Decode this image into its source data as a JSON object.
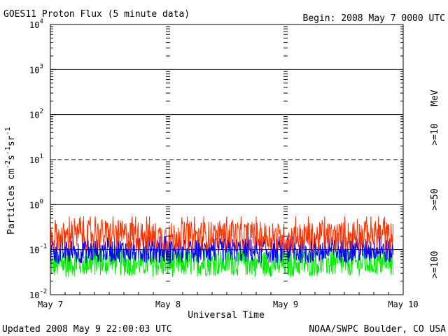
{
  "header": {
    "title": "GOES11 Proton Flux (5 minute data)",
    "begin": "Begin: 2008 May 7 0000 UTC"
  },
  "footer": {
    "updated": "Updated 2008 May  9 22:00:03 UTC",
    "source": "NOAA/SWPC Boulder, CO USA"
  },
  "colors": {
    "ge10": "#ff3300",
    "ge50": "#0000ff",
    "ge100": "#00ee00",
    "axis": "#000000"
  },
  "chart_data": {
    "type": "line",
    "title": "GOES11 Proton Flux (5 minute data)",
    "xlabel": "Universal Time",
    "ylabel": "Particles cm-2s-1sr-1",
    "yscale": "log",
    "ylim": [
      0.01,
      10000
    ],
    "xlim": [
      "2008-05-07 00:00",
      "2008-05-10 00:00"
    ],
    "x_tick_labels": [
      "May 7",
      "May 8",
      "May 9",
      "May 10"
    ],
    "y_tick_labels": [
      {
        "base": "10",
        "exp": "-2"
      },
      {
        "base": "10",
        "exp": "-1"
      },
      {
        "base": "10",
        "exp": "0"
      },
      {
        "base": "10",
        "exp": "1"
      },
      {
        "base": "10",
        "exp": "2"
      },
      {
        "base": "10",
        "exp": "3"
      },
      {
        "base": "10",
        "exp": "4"
      }
    ],
    "unit_label": "MeV",
    "grid": "horizontal lines at decades",
    "series": [
      {
        "name": ">=10",
        "color": "#ff3300",
        "x": [
          "2008-05-07 00:00",
          "2008-05-07 06:00",
          "2008-05-07 12:00",
          "2008-05-07 18:00",
          "2008-05-08 00:00",
          "2008-05-08 06:00",
          "2008-05-08 12:00",
          "2008-05-08 18:00",
          "2008-05-09 00:00",
          "2008-05-09 06:00",
          "2008-05-09 12:00",
          "2008-05-09 18:00",
          "2008-05-09 22:00"
        ],
        "values": [
          0.18,
          0.2,
          0.22,
          0.2,
          0.19,
          0.2,
          0.21,
          0.2,
          0.18,
          0.19,
          0.2,
          0.21,
          0.19
        ],
        "range": [
          0.1,
          0.55
        ]
      },
      {
        "name": ">=50",
        "color": "#0000ff",
        "x": [
          "2008-05-07 00:00",
          "2008-05-07 06:00",
          "2008-05-07 12:00",
          "2008-05-07 18:00",
          "2008-05-08 00:00",
          "2008-05-08 06:00",
          "2008-05-08 12:00",
          "2008-05-08 18:00",
          "2008-05-09 00:00",
          "2008-05-09 06:00",
          "2008-05-09 12:00",
          "2008-05-09 18:00",
          "2008-05-09 22:00"
        ],
        "values": [
          0.085,
          0.09,
          0.1,
          0.095,
          0.09,
          0.092,
          0.1,
          0.095,
          0.09,
          0.092,
          0.095,
          0.1,
          0.09
        ],
        "range": [
          0.05,
          0.2
        ]
      },
      {
        "name": ">=100",
        "color": "#00ee00",
        "x": [
          "2008-05-07 00:00",
          "2008-05-07 06:00",
          "2008-05-07 12:00",
          "2008-05-07 18:00",
          "2008-05-08 00:00",
          "2008-05-08 06:00",
          "2008-05-08 12:00",
          "2008-05-08 18:00",
          "2008-05-09 00:00",
          "2008-05-09 06:00",
          "2008-05-09 12:00",
          "2008-05-09 18:00",
          "2008-05-09 22:00"
        ],
        "values": [
          0.045,
          0.05,
          0.052,
          0.05,
          0.048,
          0.05,
          0.052,
          0.05,
          0.048,
          0.05,
          0.05,
          0.052,
          0.05
        ],
        "range": [
          0.022,
          0.1
        ]
      }
    ]
  }
}
